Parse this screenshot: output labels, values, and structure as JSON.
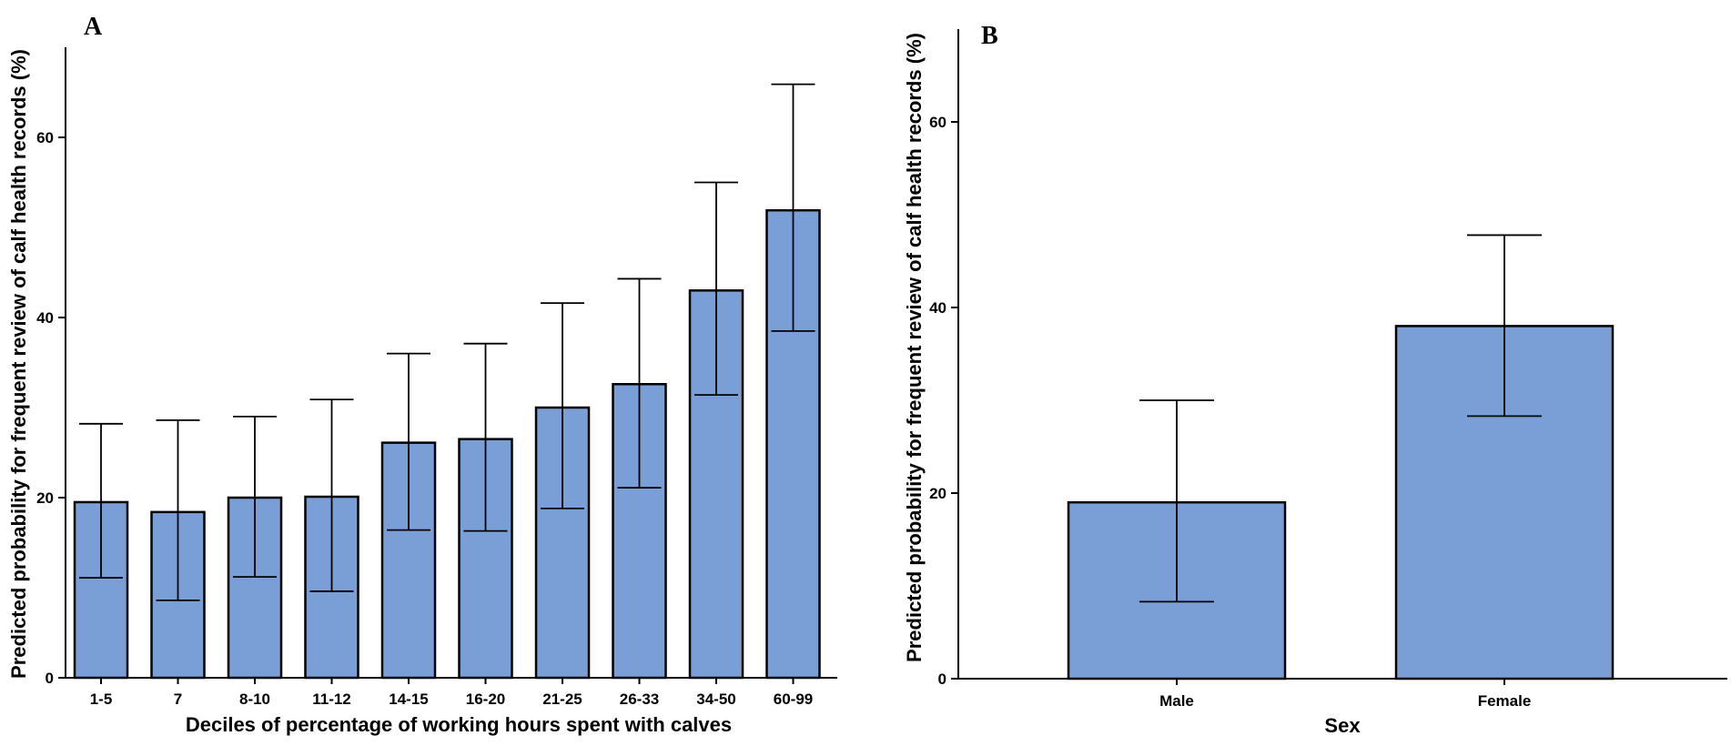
{
  "colors": {
    "bar_fill": "#7a9fd6",
    "axis": "#000000"
  },
  "chart_data": [
    {
      "panel": "A",
      "type": "bar",
      "categories": [
        "1-5",
        "7",
        "8-10",
        "11-12",
        "14-15",
        "16-20",
        "21-25",
        "26-33",
        "34-50",
        "60-99"
      ],
      "values": [
        19.5,
        18.4,
        20.0,
        20.1,
        26.1,
        26.5,
        30.0,
        32.6,
        43.0,
        51.9
      ],
      "error_lower": [
        11.1,
        8.6,
        11.2,
        9.6,
        16.4,
        16.3,
        18.8,
        21.1,
        31.4,
        38.5
      ],
      "error_upper": [
        28.2,
        28.6,
        29.0,
        30.9,
        36.0,
        37.1,
        41.6,
        44.3,
        55.0,
        65.9
      ],
      "title": "",
      "xlabel": "Deciles of percentage of working hours spent with calves",
      "ylabel": "Predicted probability for frequent review of calf health records (%)",
      "ylim": [
        0,
        70
      ],
      "yticks": [
        0,
        20,
        40,
        60
      ],
      "ytick_labels": [
        "0",
        "20",
        "40",
        "60"
      ]
    },
    {
      "panel": "B",
      "type": "bar",
      "categories": [
        "Male",
        "Female"
      ],
      "values": [
        19.0,
        38.0
      ],
      "error_lower": [
        8.3,
        28.3
      ],
      "error_upper": [
        30.0,
        47.8
      ],
      "title": "",
      "xlabel": "Sex",
      "ylabel": "Predicted probability for frequent review of calf health records (%)",
      "ylim": [
        0,
        70
      ],
      "yticks": [
        0,
        20,
        40,
        60
      ],
      "ytick_labels": [
        "0",
        "20",
        "40",
        "60"
      ]
    }
  ]
}
